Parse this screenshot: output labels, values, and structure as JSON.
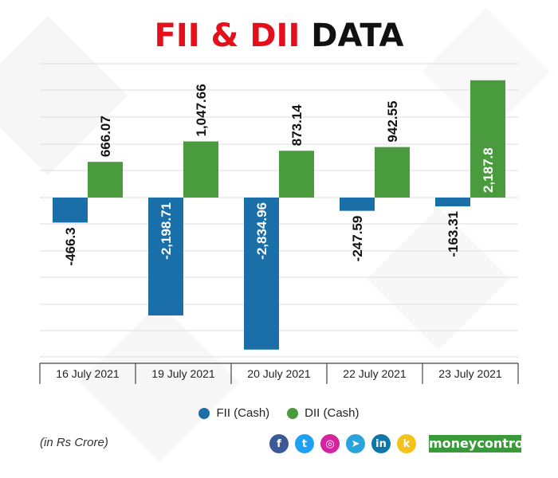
{
  "header": {
    "title_red": "FII & DII",
    "title_black": "DATA"
  },
  "chart_data": {
    "type": "bar",
    "categories": [
      "16 July 2021",
      "19 July 2021",
      "20 July 2021",
      "22 July 2021",
      "23 July 2021"
    ],
    "series": [
      {
        "name": "FII (Cash)",
        "values": [
          -466.3,
          -2198.71,
          -2834.96,
          -247.59,
          -163.31
        ],
        "labels": [
          "-466.3",
          "-2,198.71",
          "-2,834.96",
          "-247.59",
          "-163.31"
        ],
        "color": "#1a6fa8"
      },
      {
        "name": "DII (Cash)",
        "values": [
          666.07,
          1047.66,
          873.14,
          942.55,
          2187.8
        ],
        "labels": [
          "666.07",
          "1,047.66",
          "873.14",
          "942.55",
          "2,187.8"
        ],
        "color": "#4a9a3e"
      }
    ],
    "legend_position": "bottom",
    "grid": true
  },
  "footer": {
    "unit": "(in Rs Crore)",
    "brand": "moneycontrol",
    "social": [
      {
        "name": "facebook-icon",
        "glyph": "f",
        "color": "#3b5998"
      },
      {
        "name": "twitter-icon",
        "glyph": "t",
        "color": "#1da1f2"
      },
      {
        "name": "instagram-icon",
        "glyph": "◎",
        "color": "#d6249f"
      },
      {
        "name": "telegram-icon",
        "glyph": "➤",
        "color": "#2aa3dc"
      },
      {
        "name": "linkedin-icon",
        "glyph": "in",
        "color": "#0e76a8"
      },
      {
        "name": "koo-icon",
        "glyph": "k",
        "color": "#f4c21a"
      }
    ]
  }
}
